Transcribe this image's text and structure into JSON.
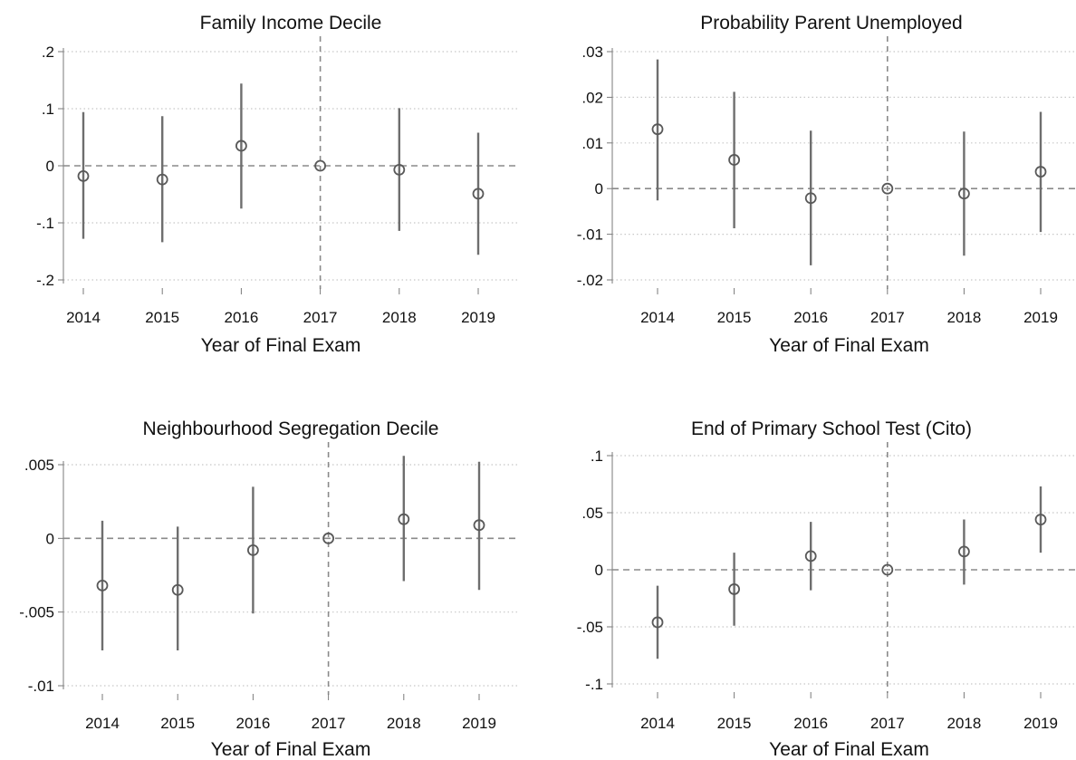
{
  "chart_data": [
    {
      "type": "scatter",
      "title": "Family Income Decile",
      "xlabel": "Year of Final Exam",
      "ylabel": "",
      "x": [
        2014,
        2015,
        2016,
        2017,
        2018,
        2019
      ],
      "xticks": [
        "2014",
        "2015",
        "2016",
        "2017",
        "2018",
        "2019"
      ],
      "y": [
        -0.018,
        -0.024,
        0.035,
        0.0,
        -0.007,
        -0.049
      ],
      "ci_low": [
        -0.128,
        -0.134,
        -0.075,
        0.0,
        -0.114,
        -0.156
      ],
      "ci_high": [
        0.094,
        0.087,
        0.144,
        0.0,
        0.101,
        0.058
      ],
      "ylim": [
        -0.2,
        0.2
      ],
      "yticks": [
        -0.2,
        -0.1,
        0,
        0.1,
        0.2
      ],
      "ytick_labels": [
        "-.2",
        "-.1",
        "0",
        ".1",
        ".2"
      ],
      "reference_x": 2017,
      "reference_y": 0,
      "grid": "dotted horizontal"
    },
    {
      "type": "scatter",
      "title": "Probability Parent Unemployed",
      "xlabel": "Year of Final Exam",
      "ylabel": "",
      "x": [
        2014,
        2015,
        2016,
        2017,
        2018,
        2019
      ],
      "xticks": [
        "2014",
        "2015",
        "2016",
        "2017",
        "2018",
        "2019"
      ],
      "y": [
        0.013,
        0.0063,
        -0.0021,
        0.0,
        -0.0011,
        0.0037
      ],
      "ci_low": [
        -0.0026,
        -0.0087,
        -0.0168,
        0.0,
        -0.0147,
        -0.0095
      ],
      "ci_high": [
        0.0283,
        0.0212,
        0.0127,
        0.0,
        0.0125,
        0.0168
      ],
      "ylim": [
        -0.02,
        0.03
      ],
      "yticks": [
        -0.02,
        -0.01,
        0,
        0.01,
        0.02,
        0.03
      ],
      "ytick_labels": [
        "-.02",
        "-.01",
        "0",
        ".01",
        ".02",
        ".03"
      ],
      "reference_x": 2017,
      "reference_y": 0,
      "grid": "dotted horizontal"
    },
    {
      "type": "scatter",
      "title": "Neighbourhood Segregation Decile",
      "xlabel": "Year of Final Exam",
      "ylabel": "",
      "x": [
        2014,
        2015,
        2016,
        2017,
        2018,
        2019
      ],
      "xticks": [
        "2014",
        "2015",
        "2016",
        "2017",
        "2018",
        "2019"
      ],
      "y": [
        -0.0032,
        -0.0035,
        -0.0008,
        0.0,
        0.0013,
        0.0009
      ],
      "ci_low": [
        -0.0076,
        -0.0076,
        -0.0051,
        0.0,
        -0.0029,
        -0.0035
      ],
      "ci_high": [
        0.0012,
        0.0008,
        0.0035,
        0.0,
        0.0056,
        0.0052
      ],
      "ylim": [
        -0.01,
        0.005
      ],
      "yticks": [
        -0.01,
        -0.005,
        0,
        0.005
      ],
      "ytick_labels": [
        "-.01",
        "-.005",
        "0",
        ".005"
      ],
      "reference_x": 2017,
      "reference_y": 0,
      "grid": "dotted horizontal"
    },
    {
      "type": "scatter",
      "title": "End of Primary School Test (Cito)",
      "xlabel": "Year of Final Exam",
      "ylabel": "",
      "x": [
        2014,
        2015,
        2016,
        2017,
        2018,
        2019
      ],
      "xticks": [
        "2014",
        "2015",
        "2016",
        "2017",
        "2018",
        "2019"
      ],
      "y": [
        -0.046,
        -0.017,
        0.012,
        0.0,
        0.016,
        0.044
      ],
      "ci_low": [
        -0.078,
        -0.049,
        -0.018,
        0.0,
        -0.013,
        0.015
      ],
      "ci_high": [
        -0.014,
        0.015,
        0.042,
        0.0,
        0.044,
        0.073
      ],
      "ylim": [
        -0.1,
        0.1
      ],
      "yticks": [
        -0.1,
        -0.05,
        0,
        0.05,
        0.1
      ],
      "ytick_labels": [
        "-.1",
        "-.05",
        "0",
        ".05",
        ".1"
      ],
      "reference_x": 2017,
      "reference_y": 0,
      "grid": "dotted horizontal"
    }
  ],
  "colors": {
    "marker": "#595959",
    "ci_line": "#6e6e6e",
    "axis": "#7a7a7a",
    "grid": "#c8c8c8",
    "reference": "#8a8a8a",
    "text": "#111111"
  }
}
